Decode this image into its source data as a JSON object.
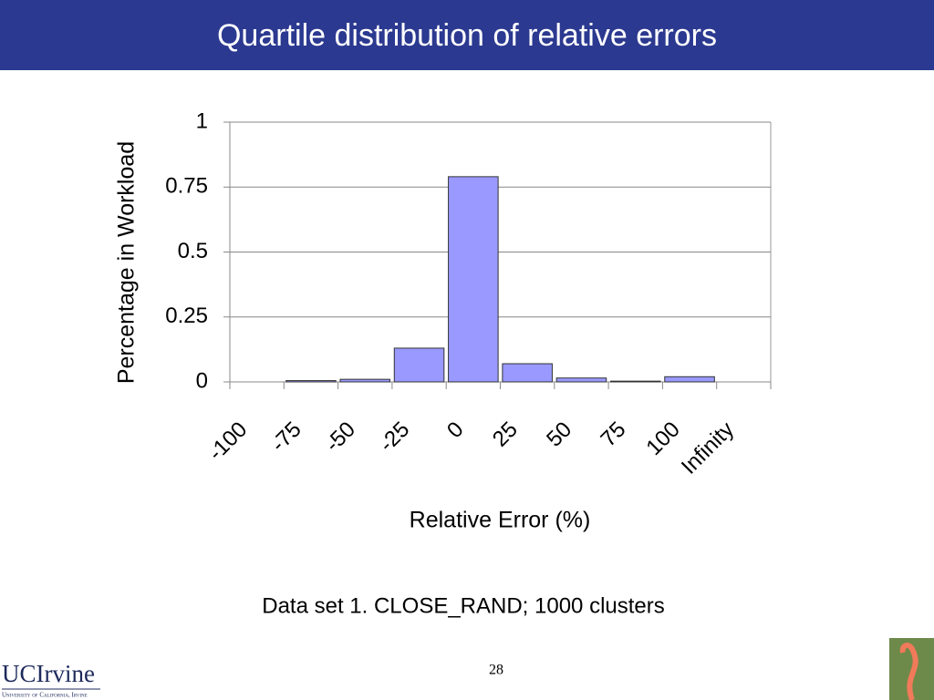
{
  "slide": {
    "title": "Quartile distribution of relative errors",
    "caption": "Data set 1. CLOSE_RAND; 1000 clusters",
    "page_number": "28",
    "logo": "UCIrvine",
    "logo_subtitle": "University of California, Irvine"
  },
  "chart_data": {
    "type": "bar",
    "x_label": "Relative Error (%)",
    "y_label": "Percentage in Workload",
    "categories": [
      "-100",
      "-75",
      "-50",
      "-25",
      "0",
      "25",
      "50",
      "75",
      "100",
      "Infinity"
    ],
    "values": [
      0,
      0.005,
      0.01,
      0.13,
      0.79,
      0.07,
      0.015,
      0.003,
      0.02,
      0
    ],
    "color": "#9999ff",
    "ylim": [
      0,
      1
    ],
    "yticks": [
      0,
      0.25,
      0.5,
      0.75,
      1
    ],
    "grid": true
  }
}
